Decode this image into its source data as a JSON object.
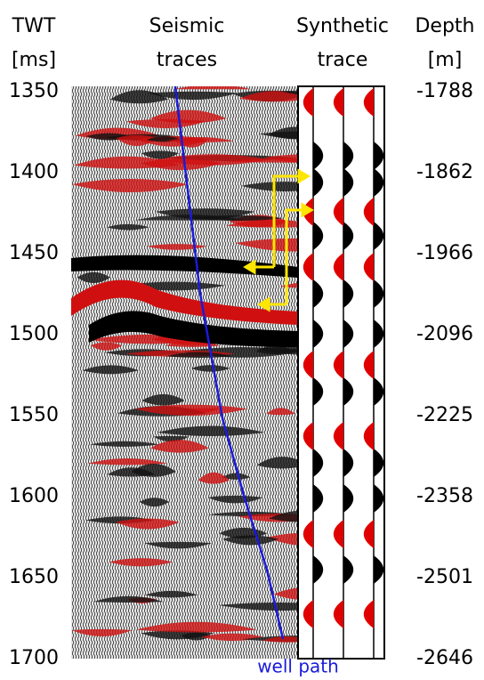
{
  "header": {
    "twt": [
      "TWT",
      "[ms]"
    ],
    "seismic": [
      "Seismic",
      "traces"
    ],
    "synthetic": [
      "Synthetic",
      "trace"
    ],
    "depth": [
      "Depth",
      "[m]"
    ]
  },
  "twt_ticks": [
    1350,
    1400,
    1450,
    1500,
    1550,
    1600,
    1650,
    1700
  ],
  "depth_ticks": [
    -1788,
    -1862,
    -1966,
    -2096,
    -2225,
    -2358,
    -2501,
    -2646
  ],
  "annotation": "well path"
}
